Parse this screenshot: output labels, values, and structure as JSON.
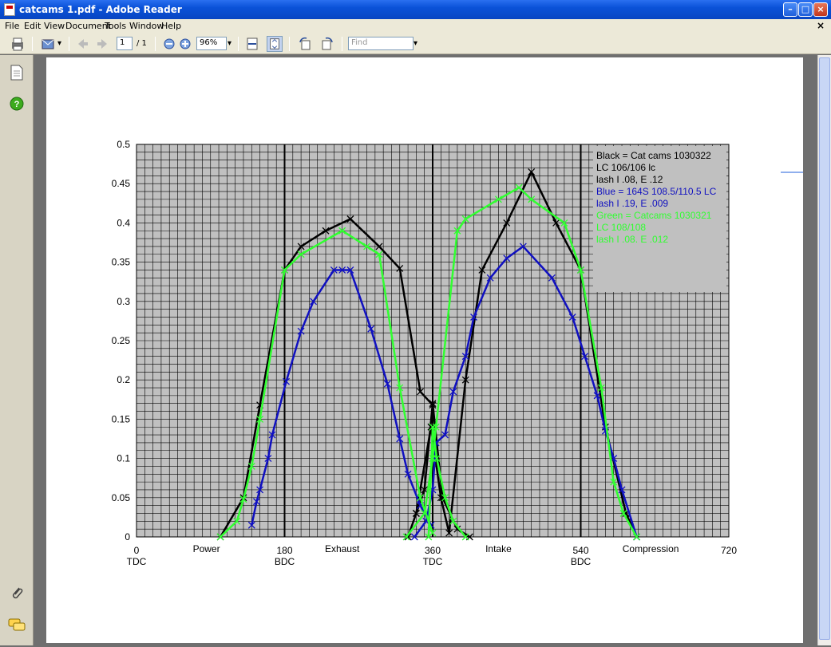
{
  "window": {
    "title": "catcams 1.pdf - Adobe Reader"
  },
  "menu": [
    "File",
    "Edit",
    "View",
    "Document",
    "Tools",
    "Window",
    "Help"
  ],
  "toolbar": {
    "page_current": "1",
    "page_total": "/ 1",
    "zoom": "96%",
    "find_placeholder": "Find"
  },
  "chart_data": {
    "type": "line",
    "title": "",
    "xlim": [
      0,
      720
    ],
    "ylim": [
      0,
      0.5
    ],
    "grid": true,
    "plot_background": "#c0c0c0",
    "y_ticks": [
      "0",
      "0.05",
      "0.1",
      "0.15",
      "0.2",
      "0.25",
      "0.3",
      "0.35",
      "0.4",
      "0.45",
      "0.5"
    ],
    "x_ticks": [
      {
        "x": 0,
        "label": "0",
        "sub": "TDC"
      },
      {
        "x": 180,
        "label": "180",
        "sub": "BDC"
      },
      {
        "x": 360,
        "label": "360",
        "sub": "TDC"
      },
      {
        "x": 540,
        "label": "540",
        "sub": "BDC"
      },
      {
        "x": 720,
        "label": "720",
        "sub": ""
      }
    ],
    "strokes": [
      {
        "x": 85,
        "label": "Power"
      },
      {
        "x": 250,
        "label": "Exhaust"
      },
      {
        "x": 440,
        "label": "Intake"
      },
      {
        "x": 625,
        "label": "Compression"
      }
    ],
    "vlines": [
      180,
      360,
      540
    ],
    "legend": {
      "placement": "top-right",
      "lines": [
        {
          "text": "Black = Cat cams 1030322",
          "color": "#000000"
        },
        {
          "text": "LC 106/106 lc",
          "color": "#000000"
        },
        {
          "text": "lash I .08, E .12",
          "color": "#000000"
        },
        {
          "text": "Blue = 164S 108.5/110.5 LC",
          "color": "#1010c0"
        },
        {
          "text": "lash I .19, E .009",
          "color": "#1010c0"
        },
        {
          "text": "Green = Catcams 1030321",
          "color": "#30ff30"
        },
        {
          "text": "LC 108/108",
          "color": "#30ff30"
        },
        {
          "text": "lash I .08. E .012",
          "color": "#30ff30"
        }
      ]
    },
    "series": [
      {
        "color": "#000000",
        "x": [
          102,
          130,
          150,
          180,
          200,
          230,
          260,
          295,
          320,
          345,
          360
        ],
        "y": [
          0,
          0.05,
          0.168,
          0.34,
          0.37,
          0.39,
          0.405,
          0.37,
          0.342,
          0.185,
          0.168
        ]
      },
      {
        "color": "#000000",
        "x": [
          340,
          358,
          370,
          380,
          400,
          420,
          450,
          480,
          510,
          540,
          570,
          595,
          608
        ],
        "y": [
          0.03,
          0.14,
          0.05,
          0.005,
          0.2,
          0.34,
          0.4,
          0.465,
          0.4,
          0.34,
          0.14,
          0.03,
          0
        ]
      },
      {
        "color": "#000000",
        "x": [
          330,
          340,
          350,
          360,
          372,
          390,
          405
        ],
        "y": [
          0,
          0.03,
          0.06,
          0.17,
          0.05,
          0.01,
          0
        ]
      },
      {
        "color": "#1010c0",
        "x": [
          140,
          146,
          150,
          160,
          165,
          182,
          200,
          215,
          240,
          250,
          260,
          285,
          305,
          320,
          330,
          345,
          358
        ],
        "y": [
          0.015,
          0.045,
          0.06,
          0.1,
          0.13,
          0.198,
          0.262,
          0.3,
          0.34,
          0.34,
          0.34,
          0.265,
          0.195,
          0.125,
          0.08,
          0.04,
          0.015
        ]
      },
      {
        "color": "#1010c0",
        "x": [
          338,
          352,
          360,
          364,
          375,
          385,
          400,
          410,
          430,
          450,
          470,
          505,
          530,
          545,
          560,
          570,
          580,
          590,
          608
        ],
        "y": [
          0,
          0.02,
          0.06,
          0.12,
          0.13,
          0.185,
          0.23,
          0.28,
          0.33,
          0.355,
          0.37,
          0.33,
          0.28,
          0.23,
          0.18,
          0.135,
          0.1,
          0.06,
          0
        ]
      },
      {
        "color": "#30ff30",
        "x": [
          102,
          122,
          130,
          140,
          150,
          180,
          200,
          250,
          280,
          295,
          320,
          345,
          360
        ],
        "y": [
          0,
          0.02,
          0.048,
          0.09,
          0.15,
          0.34,
          0.36,
          0.39,
          0.37,
          0.36,
          0.19,
          0.05,
          0.005
        ]
      },
      {
        "color": "#30ff30",
        "x": [
          328,
          350,
          360,
          364,
          390,
          400,
          440,
          465,
          480,
          520,
          540,
          565,
          580,
          592,
          608
        ],
        "y": [
          0,
          0.03,
          0.1,
          0.14,
          0.39,
          0.405,
          0.43,
          0.445,
          0.43,
          0.4,
          0.34,
          0.19,
          0.07,
          0.03,
          0
        ]
      },
      {
        "color": "#30ff30",
        "x": [
          355,
          360,
          365,
          375,
          385,
          400
        ],
        "y": [
          0,
          0.14,
          0.1,
          0.05,
          0.02,
          0
        ]
      }
    ]
  }
}
